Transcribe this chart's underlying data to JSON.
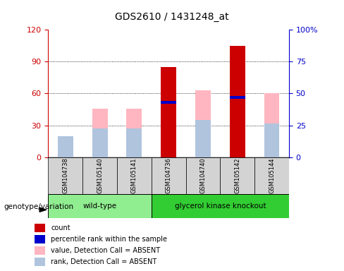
{
  "title": "GDS2610 / 1431248_at",
  "samples": [
    "GSM104738",
    "GSM105140",
    "GSM105141",
    "GSM104736",
    "GSM104740",
    "GSM105142",
    "GSM105144"
  ],
  "count": [
    0,
    0,
    0,
    85,
    0,
    105,
    0
  ],
  "percentile_rank": [
    0,
    0,
    0,
    43,
    0,
    47,
    0
  ],
  "value_absent": [
    20,
    46,
    46,
    43,
    63,
    0,
    60
  ],
  "rank_absent": [
    20,
    27,
    27,
    0,
    35,
    0,
    32
  ],
  "ylim_left": [
    0,
    120
  ],
  "ylim_right": [
    0,
    100
  ],
  "yticks_left": [
    0,
    30,
    60,
    90,
    120
  ],
  "ytick_labels_left": [
    "0",
    "30",
    "60",
    "90",
    "120"
  ],
  "yticks_right": [
    0,
    25,
    50,
    75,
    100
  ],
  "ytick_labels_right": [
    "0",
    "25",
    "50",
    "75",
    "100%"
  ],
  "color_count": "#CC0000",
  "color_percentile": "#0000CC",
  "color_value_absent": "#FFB6C1",
  "color_rank_absent": "#B0C4DE",
  "wt_color": "#90EE90",
  "gk_color": "#32CD32",
  "legend_items": [
    {
      "label": "count",
      "color": "#CC0000"
    },
    {
      "label": "percentile rank within the sample",
      "color": "#0000CC"
    },
    {
      "label": "value, Detection Call = ABSENT",
      "color": "#FFB6C1"
    },
    {
      "label": "rank, Detection Call = ABSENT",
      "color": "#B0C4DE"
    }
  ]
}
